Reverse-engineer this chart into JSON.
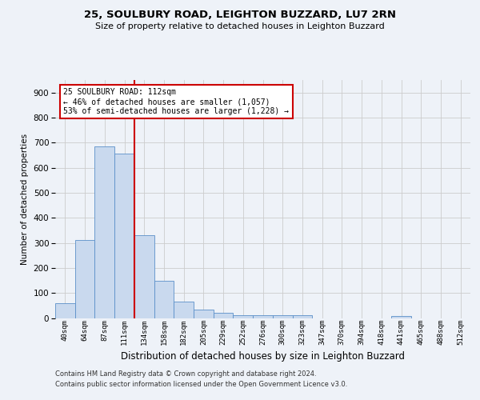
{
  "title1": "25, SOULBURY ROAD, LEIGHTON BUZZARD, LU7 2RN",
  "title2": "Size of property relative to detached houses in Leighton Buzzard",
  "xlabel": "Distribution of detached houses by size in Leighton Buzzard",
  "ylabel": "Number of detached properties",
  "footer1": "Contains HM Land Registry data © Crown copyright and database right 2024.",
  "footer2": "Contains public sector information licensed under the Open Government Licence v3.0.",
  "bin_labels": [
    "40sqm",
    "64sqm",
    "87sqm",
    "111sqm",
    "134sqm",
    "158sqm",
    "182sqm",
    "205sqm",
    "229sqm",
    "252sqm",
    "276sqm",
    "300sqm",
    "323sqm",
    "347sqm",
    "370sqm",
    "394sqm",
    "418sqm",
    "441sqm",
    "465sqm",
    "488sqm",
    "512sqm"
  ],
  "bar_values": [
    60,
    310,
    685,
    655,
    330,
    150,
    65,
    33,
    20,
    12,
    12,
    12,
    10,
    0,
    0,
    0,
    0,
    8,
    0,
    0,
    0
  ],
  "bar_color": "#c9d9ee",
  "bar_edgecolor": "#5b8fc9",
  "grid_color": "#cccccc",
  "vline_x": 3.5,
  "vline_color": "#cc0000",
  "annotation_line1": "25 SOULBURY ROAD: 112sqm",
  "annotation_line2": "← 46% of detached houses are smaller (1,057)",
  "annotation_line3": "53% of semi-detached houses are larger (1,228) →",
  "annotation_box_color": "#cc0000",
  "annotation_bg": "#ffffff",
  "ylim": [
    0,
    950
  ],
  "yticks": [
    0,
    100,
    200,
    300,
    400,
    500,
    600,
    700,
    800,
    900
  ],
  "background_color": "#eef2f8",
  "title1_fontsize": 9.5,
  "title2_fontsize": 8.0
}
